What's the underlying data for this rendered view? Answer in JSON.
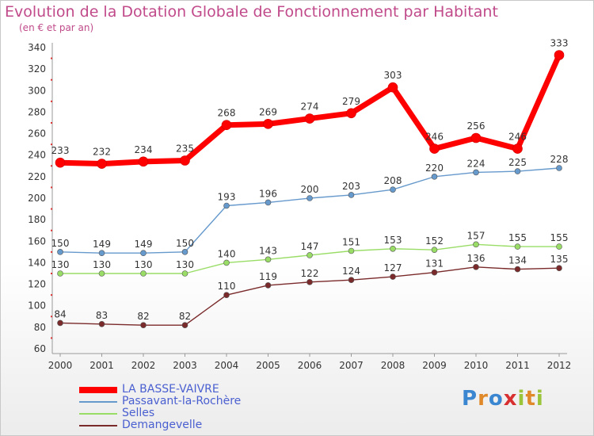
{
  "chart_data": {
    "type": "line",
    "title": "Evolution de la Dotation Globale de Fonctionnement par Habitant",
    "subtitle": "(en € et par an)",
    "x": [
      "2000",
      "2001",
      "2002",
      "2003",
      "2004",
      "2005",
      "2006",
      "2007",
      "2008",
      "2009",
      "2010",
      "2011",
      "2012"
    ],
    "ylim": [
      60,
      340
    ],
    "yticks": [
      60,
      80,
      100,
      120,
      140,
      160,
      180,
      200,
      220,
      240,
      260,
      280,
      300,
      320,
      340
    ],
    "grid": false,
    "legend_position": "bottom-left",
    "series": [
      {
        "name": "LA BASSE-VAIVRE",
        "color": "#ff0000",
        "values": [
          233,
          232,
          234,
          235,
          268,
          269,
          274,
          279,
          303,
          246,
          256,
          246,
          333
        ]
      },
      {
        "name": "Passavant-la-Rochère",
        "color": "#6699cc",
        "values": [
          150,
          149,
          149,
          150,
          193,
          196,
          200,
          203,
          208,
          220,
          224,
          225,
          228
        ]
      },
      {
        "name": "Selles",
        "color": "#99dd66",
        "values": [
          130,
          130,
          130,
          130,
          140,
          143,
          147,
          151,
          153,
          152,
          157,
          155,
          155
        ]
      },
      {
        "name": "Demangevelle",
        "color": "#7a2a2a",
        "values": [
          84,
          83,
          82,
          82,
          110,
          119,
          122,
          124,
          127,
          131,
          136,
          134,
          135
        ]
      }
    ]
  },
  "logo": {
    "letters": [
      "P",
      "r",
      "o",
      "x",
      "i",
      "t",
      "i"
    ],
    "colors": [
      "#3a86d0",
      "#e0892a",
      "#3a86d0",
      "#d83030",
      "#9ac43a",
      "#e0892a",
      "#9ac43a"
    ]
  }
}
